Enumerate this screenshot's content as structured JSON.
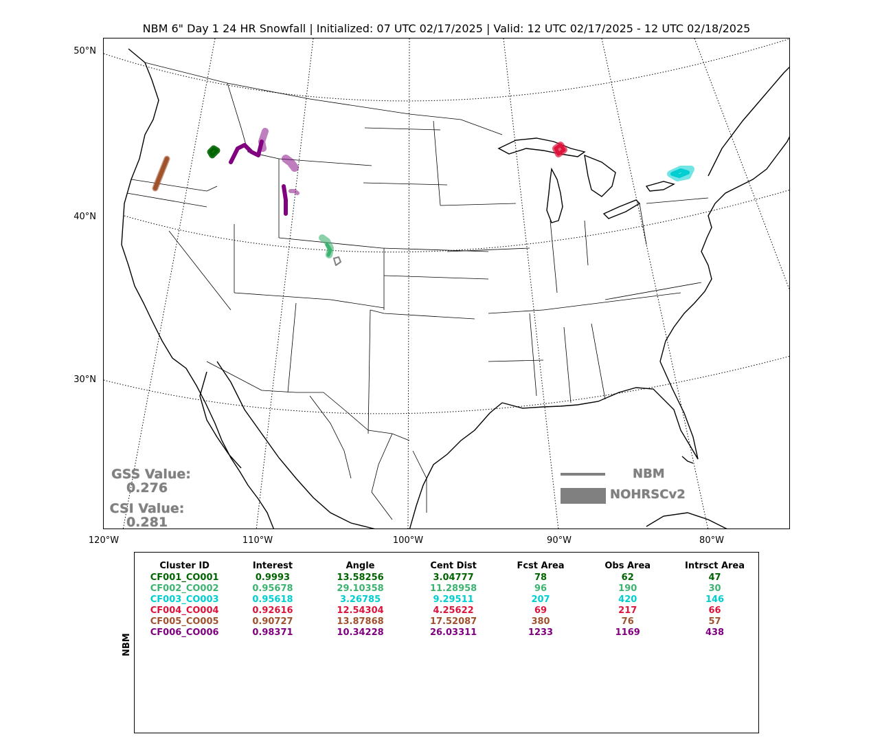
{
  "title": "NBM 6\" Day 1 24 HR Snowfall | Initialized: 07 UTC 02/17/2025 | Valid: 12 UTC 02/17/2025 - 12 UTC 02/18/2025",
  "lat_labels": [
    "50°N",
    "40°N",
    "30°N"
  ],
  "lon_labels": [
    "120°W",
    "110°W",
    "100°W",
    "90°W",
    "80°W"
  ],
  "stats": {
    "gss_label": "GSS Value:",
    "gss_value": "0.276",
    "csi_label": "CSI Value:",
    "csi_value": "0.281"
  },
  "legend": {
    "forecast_label": "NBM",
    "observed_label": "NOHRSCv2",
    "color": "#808080"
  },
  "table": {
    "side_label": "NBM",
    "headers": [
      "Cluster ID",
      "Interest",
      "Angle",
      "Cent Dist",
      "Fcst Area",
      "Obs Area",
      "Intrsct Area"
    ],
    "rows": [
      {
        "color": "#006400",
        "cells": [
          "CF001_CO001",
          "0.9993",
          "13.58256",
          "3.04777",
          "78",
          "62",
          "47"
        ]
      },
      {
        "color": "#3cb371",
        "cells": [
          "CF002_CO002",
          "0.95678",
          "29.10358",
          "11.28958",
          "96",
          "190",
          "30"
        ]
      },
      {
        "color": "#00ced1",
        "cells": [
          "CF003_CO003",
          "0.95618",
          "3.26785",
          "9.29511",
          "207",
          "420",
          "146"
        ]
      },
      {
        "color": "#dc143c",
        "cells": [
          "CF004_CO004",
          "0.92616",
          "12.54304",
          "4.25622",
          "69",
          "217",
          "66"
        ]
      },
      {
        "color": "#a0522d",
        "cells": [
          "CF005_CO005",
          "0.90727",
          "13.87868",
          "17.52087",
          "380",
          "76",
          "57"
        ]
      },
      {
        "color": "#800080",
        "cells": [
          "CF006_CO006",
          "0.98371",
          "10.34228",
          "26.03311",
          "1233",
          "1169",
          "438"
        ]
      }
    ]
  }
}
